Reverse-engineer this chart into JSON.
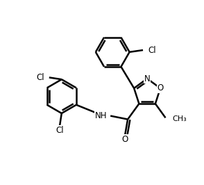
{
  "bg_color": "#ffffff",
  "bond_color": "#000000",
  "bond_width": 1.8,
  "fs": 8.5,
  "figsize": [
    2.94,
    2.66
  ],
  "dpi": 100,
  "xlim": [
    0,
    10
  ],
  "ylim": [
    0,
    9.5
  ]
}
